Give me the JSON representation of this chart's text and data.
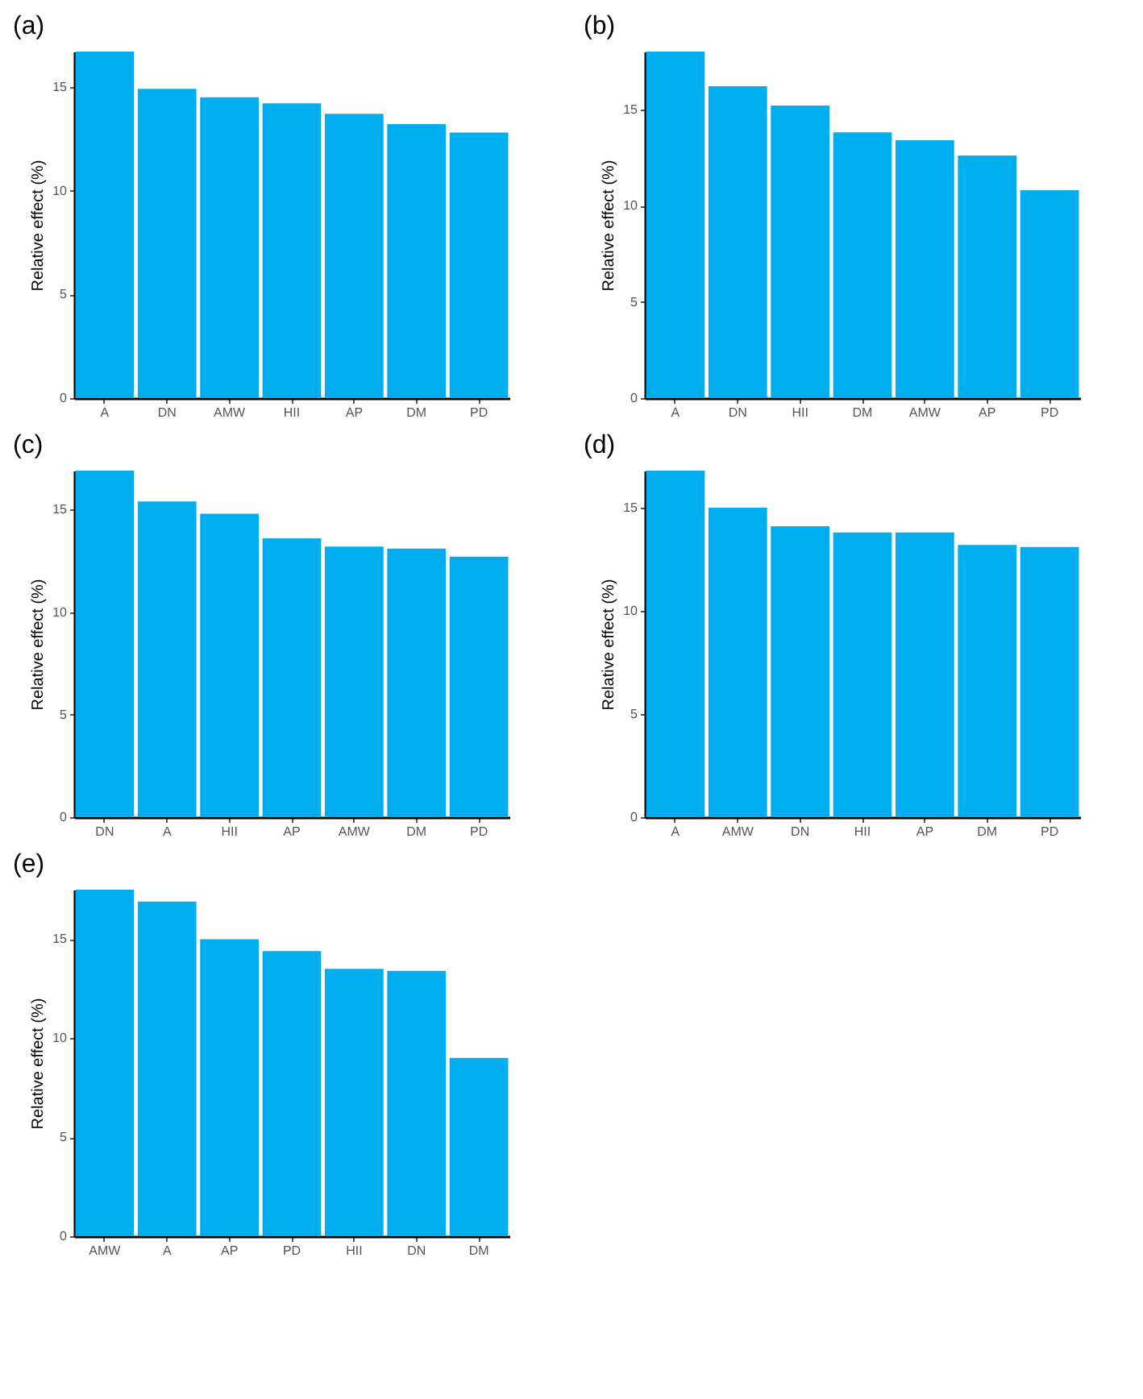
{
  "chart_data": [
    {
      "type": "bar",
      "title": "(a)",
      "ylabel": "Relative effect (%)",
      "categories": [
        "A",
        "DN",
        "AMW",
        "HII",
        "AP",
        "DM",
        "PD"
      ],
      "values": [
        16.7,
        14.9,
        14.5,
        14.2,
        13.7,
        13.2,
        12.8
      ],
      "color": "#00aeef",
      "ylim": [
        0,
        16.7
      ],
      "yticks": [
        0,
        5,
        10,
        15
      ],
      "grid": false
    },
    {
      "type": "bar",
      "title": "(b)",
      "ylabel": "Relative effect (%)",
      "categories": [
        "A",
        "DN",
        "HII",
        "DM",
        "AMW",
        "AP",
        "PD"
      ],
      "values": [
        18.0,
        16.2,
        15.2,
        13.8,
        13.4,
        12.6,
        10.8
      ],
      "color": "#00aeef",
      "ylim": [
        0,
        18.0
      ],
      "yticks": [
        0,
        5,
        10,
        15
      ],
      "grid": false
    },
    {
      "type": "bar",
      "title": "(c)",
      "ylabel": "Relative effect (%)",
      "categories": [
        "DN",
        "A",
        "HII",
        "AP",
        "AMW",
        "DM",
        "PD"
      ],
      "values": [
        16.9,
        15.4,
        14.8,
        13.6,
        13.2,
        13.1,
        12.7
      ],
      "color": "#00aeef",
      "ylim": [
        0,
        16.9
      ],
      "yticks": [
        0,
        5,
        10,
        15
      ],
      "grid": false
    },
    {
      "type": "bar",
      "title": "(d)",
      "ylabel": "Relative effect (%)",
      "categories": [
        "A",
        "AMW",
        "DN",
        "HII",
        "AP",
        "DM",
        "PD"
      ],
      "values": [
        16.8,
        15.0,
        14.1,
        13.8,
        13.8,
        13.2,
        13.1
      ],
      "color": "#00aeef",
      "ylim": [
        0,
        16.8
      ],
      "yticks": [
        0,
        5,
        10,
        15
      ],
      "grid": false
    },
    {
      "type": "bar",
      "title": "(e)",
      "ylabel": "Relative effect (%)",
      "categories": [
        "AMW",
        "A",
        "AP",
        "PD",
        "HII",
        "DN",
        "DM"
      ],
      "values": [
        17.5,
        16.9,
        15.0,
        14.4,
        13.5,
        13.4,
        9.0
      ],
      "color": "#00aeef",
      "ylim": [
        0,
        17.5
      ],
      "yticks": [
        0,
        5,
        10,
        15
      ],
      "grid": false
    }
  ]
}
